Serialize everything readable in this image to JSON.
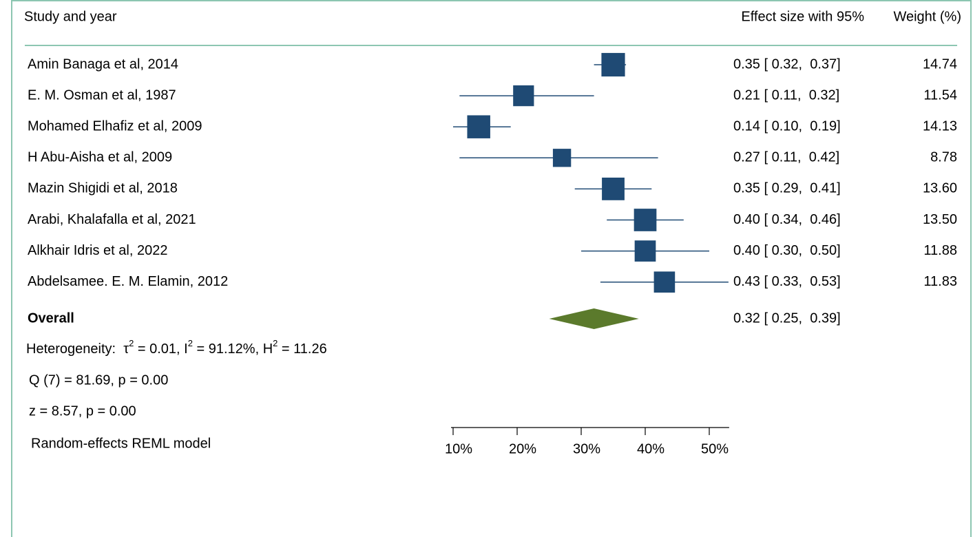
{
  "chart_data": {
    "type": "forest",
    "headers": [
      "Study and year",
      "Effect size with 95%",
      "Weight (%)"
    ],
    "studies": [
      "Amin Banaga et al, 2014",
      "E. M. Osman et al, 1987",
      "Mohamed Elhafiz et al, 2009",
      "H Abu-Aisha et al, 2009",
      "Mazin Shigidi et al, 2018",
      "Arabi, Khalafalla et al, 2021",
      "Alkhair Idris et al, 2022",
      "Abdelsamee. E. M. Elamin, 2012"
    ],
    "values": [
      0.35,
      0.21,
      0.14,
      0.27,
      0.35,
      0.4,
      0.4,
      0.43
    ],
    "lower": [
      0.32,
      0.11,
      0.1,
      0.11,
      0.29,
      0.34,
      0.3,
      0.33
    ],
    "upper": [
      0.37,
      0.32,
      0.19,
      0.42,
      0.41,
      0.46,
      0.5,
      0.53
    ],
    "value_labels": [
      "0.35 [ 0.32,  0.37]",
      "0.21 [ 0.11,  0.32]",
      "0.14 [ 0.10,  0.19]",
      "0.27 [ 0.11,  0.42]",
      "0.35 [ 0.29,  0.41]",
      "0.40 [ 0.34,  0.46]",
      "0.40 [ 0.30,  0.50]",
      "0.43 [ 0.33,  0.53]"
    ],
    "weights": [
      14.74,
      11.54,
      14.13,
      8.78,
      13.6,
      13.5,
      11.88,
      11.83
    ],
    "weight_labels": [
      "14.74",
      "11.54",
      "14.13",
      "8.78",
      "13.60",
      "13.50",
      "11.88",
      "11.83"
    ],
    "marker_color": "#1f4a74",
    "overall": {
      "label": "Overall",
      "value": 0.32,
      "lower": 0.25,
      "upper": 0.39,
      "value_label": "0.32 [ 0.25,  0.39]",
      "color": "#5b7a2c"
    },
    "heterogeneity": [
      "Heterogeneity:  τ",
      "2",
      " = 0.01, I",
      "2",
      " = 91.12%, H",
      "2",
      " = 11.26"
    ],
    "notes": [
      "Q (7) = 81.69, p = 0.00",
      "z = 8.57, p = 0.00",
      "Random-effects REML model"
    ],
    "xlim": [
      0.1,
      0.5
    ],
    "xticks": [
      {
        "value": 0.1,
        "label": "10%"
      },
      {
        "value": 0.2,
        "label": "20%"
      },
      {
        "value": 0.3,
        "label": "30%"
      },
      {
        "value": 0.4,
        "label": "40%"
      },
      {
        "value": 0.5,
        "label": "50%"
      }
    ]
  }
}
